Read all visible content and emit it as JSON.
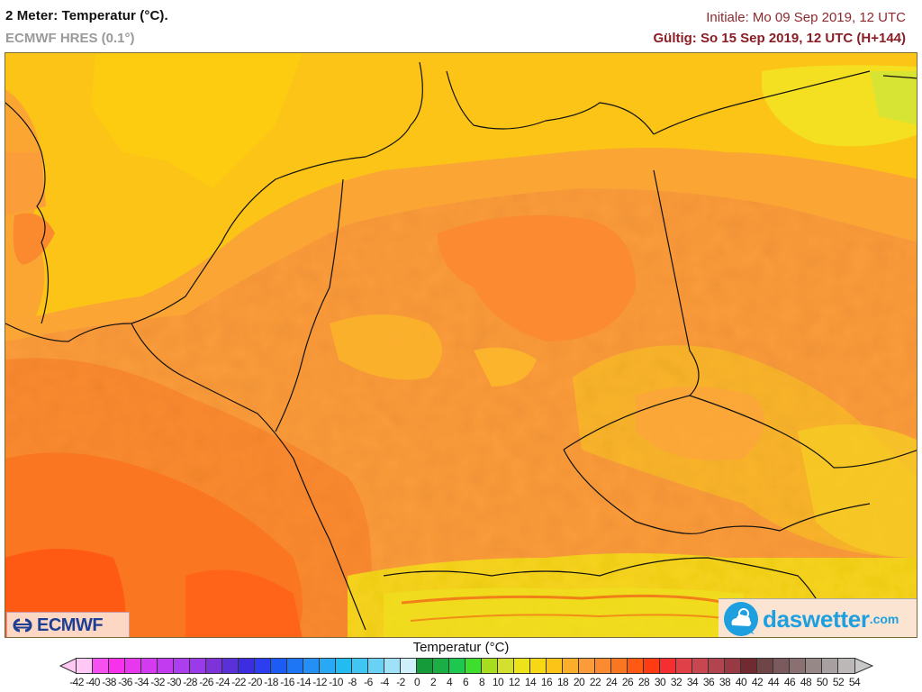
{
  "header": {
    "title": "2 Meter: Temperatur (°C).",
    "model": "ECMWF HRES (0.1°)",
    "initial": "Initiale: Mo 09 Sep 2019, 12 UTC",
    "valid": "Gültig: So 15 Sep 2019, 12 UTC (H+144)"
  },
  "logos": {
    "left": "ECMWF",
    "right_main": "daswetter",
    "right_suffix": ".com"
  },
  "legend": {
    "title": "Temperatur (°C)",
    "ticks": [
      "-42",
      "-40",
      "-38",
      "-36",
      "-34",
      "-32",
      "-30",
      "-28",
      "-26",
      "-24",
      "-22",
      "-20",
      "-18",
      "-16",
      "-14",
      "-12",
      "-10",
      "-8",
      "-6",
      "-4",
      "-2",
      "0",
      "2",
      "4",
      "6",
      "8",
      "10",
      "12",
      "14",
      "16",
      "18",
      "20",
      "22",
      "24",
      "26",
      "28",
      "30",
      "32",
      "34",
      "36",
      "38",
      "40",
      "42",
      "44",
      "46",
      "48",
      "50",
      "52",
      "54"
    ],
    "colors": [
      "#ffc8f5",
      "#f650f0",
      "#f832ec",
      "#e838ee",
      "#d43af0",
      "#c23bf0",
      "#ac3ef0",
      "#9a3ae8",
      "#7e33d8",
      "#5a30d8",
      "#3c2ee0",
      "#2c3ef0",
      "#1c5cf5",
      "#1d76f5",
      "#2490f5",
      "#28a8f5",
      "#22bcf2",
      "#3fc6f2",
      "#69d2f4",
      "#9fe2f8",
      "#cfeffb",
      "#159b3a",
      "#1aae44",
      "#1ec850",
      "#3fdd2e",
      "#a8dc1e",
      "#d4e030",
      "#ece31a",
      "#f7d814",
      "#fbc416",
      "#fbae2a",
      "#fb9b3a",
      "#fb8a30",
      "#fb7620",
      "#ff5a14",
      "#ff3b14",
      "#f52f2f",
      "#e04048",
      "#c84650",
      "#b24450",
      "#983a44",
      "#702a30",
      "#6e4648",
      "#7a5a5c",
      "#8a7070",
      "#978888",
      "#a8a0a0",
      "#bcb8b8"
    ],
    "left_arrow_color": "#ffc8f5",
    "right_arrow_color": "#c8c8c8"
  },
  "map": {
    "region": "Central Europe (Germany, Benelux, Czechia, Alps)",
    "sea_color": "#fbc416",
    "dominant_land_color": "#fb9b3a",
    "warm_southwest_color": "#ff5a14",
    "cool_northeast_color": "#e8e020"
  }
}
